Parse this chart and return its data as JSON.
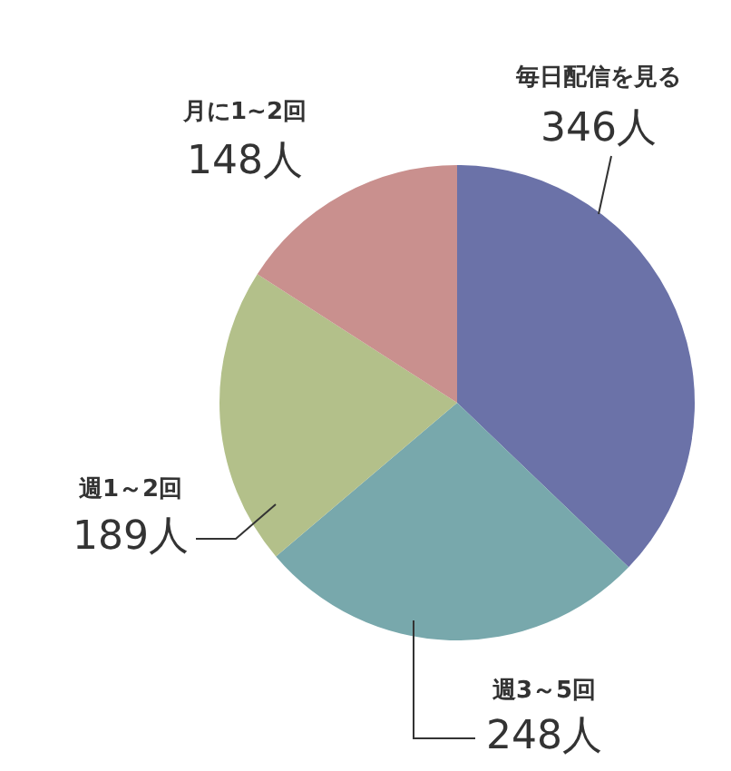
{
  "chart_data": {
    "type": "pie",
    "categories": [
      "毎日配信を見る",
      "週3～5回",
      "週1～2回",
      "月に1~2回"
    ],
    "values": [
      346,
      248,
      189,
      148
    ],
    "value_labels": [
      "346人",
      "248人",
      "189人",
      "148人"
    ],
    "colors": [
      "#6b72a8",
      "#78a8ac",
      "#b3c08a",
      "#c9908e"
    ],
    "legend": false
  }
}
